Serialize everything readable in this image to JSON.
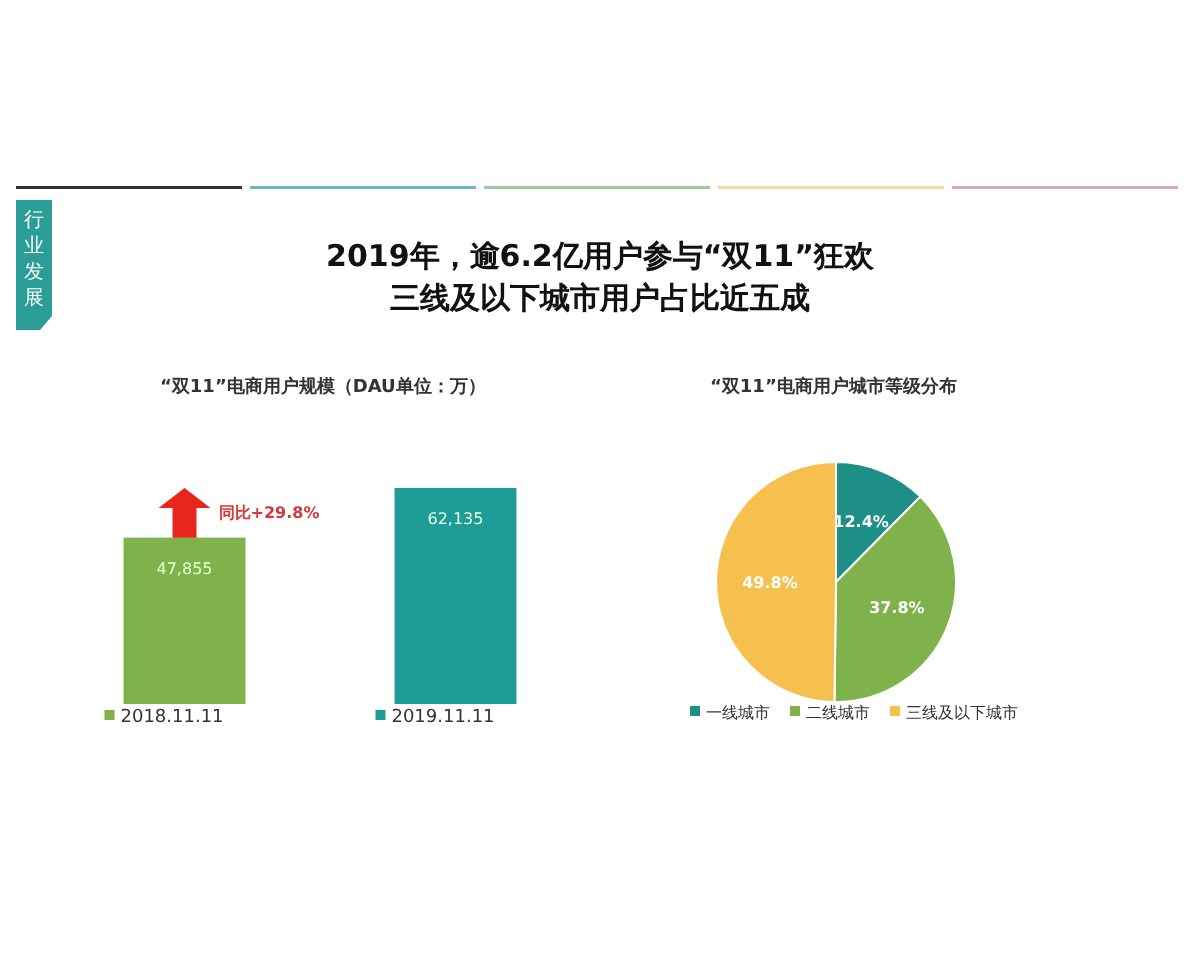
{
  "chart_data": [
    {
      "type": "other",
      "title": "2019年，逾6.2亿用户参与“双11”狂欢",
      "subtitle": "三线及以下城市用户占比近五成",
      "annotations": [
        "行业发展"
      ]
    },
    {
      "type": "bar",
      "title": "“双11”电商用户规模（DAU单位：万）",
      "categories": [
        "2018.11.11",
        "2019.11.11"
      ],
      "values": [
        47855,
        62135
      ],
      "colors": [
        "#7fb24a",
        "#1e9c98"
      ],
      "value_labels": [
        "47,855",
        "62,135"
      ],
      "relative": false,
      "annotations": [
        "同比+29.8%"
      ]
    },
    {
      "type": "pie",
      "title": "“双11”电商用户城市等级分布",
      "categories": [
        "一线城市",
        "二线城市",
        "三线及以下城市"
      ],
      "values": [
        12.4,
        37.8,
        49.8
      ],
      "colors": [
        "#1e8f86",
        "#7fb24a",
        "#f5c04e"
      ],
      "value_labels": [
        "12.4%",
        "37.8%",
        "49.8%"
      ],
      "legend": "bottom"
    }
  ]
}
